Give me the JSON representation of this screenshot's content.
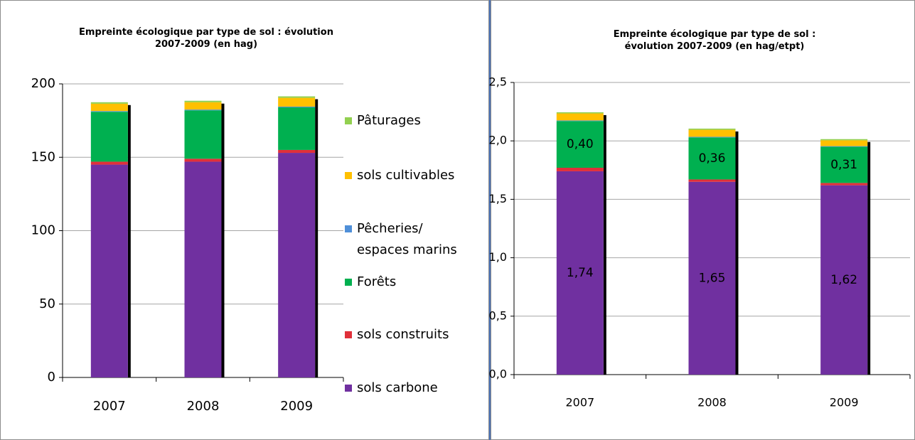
{
  "chart_data": [
    {
      "type": "bar",
      "stacked": true,
      "title": "Empreinte écologique par type de sol : évolution\n2007-2009  (en hag)",
      "categories": [
        "2007",
        "2008",
        "2009"
      ],
      "ylim": [
        0,
        200
      ],
      "yticks": [
        0,
        50,
        100,
        150,
        200
      ],
      "grid": true,
      "legend": "right",
      "series": [
        {
          "name": "sols carbone",
          "color": "#7030a0",
          "values": [
            145,
            147,
            153
          ]
        },
        {
          "name": "sols construits",
          "color": "#e0303a",
          "values": [
            2,
            2,
            2
          ]
        },
        {
          "name": "Forêts",
          "color": "#00b050",
          "values": [
            34,
            33,
            29
          ]
        },
        {
          "name": "Pêcheries/\nespaces marins",
          "color": "#4f8fd8",
          "values": [
            0.5,
            0.5,
            0.5
          ]
        },
        {
          "name": "sols cultivables",
          "color": "#ffc000",
          "values": [
            5,
            5,
            6
          ]
        },
        {
          "name": "Pâturages",
          "color": "#92d050",
          "values": [
            1,
            1,
            1
          ]
        }
      ]
    },
    {
      "type": "bar",
      "stacked": true,
      "title": "Empreinte écologique par type de sol :\névolution 2007-2009  (en hag/etpt)",
      "categories": [
        "2007",
        "2008",
        "2009"
      ],
      "ylim": [
        0,
        2.5
      ],
      "yticks": [
        {
          "value": 0,
          "label": "0,0"
        },
        {
          "value": 0.5,
          "label": "0,5"
        },
        {
          "value": 1,
          "label": "1,0"
        },
        {
          "value": 1.5,
          "label": "1,5"
        },
        {
          "value": 2,
          "label": "2,0"
        },
        {
          "value": 2.5,
          "label": "2,5"
        }
      ],
      "grid": true,
      "series": [
        {
          "color": "#7030a0",
          "values": [
            1.74,
            1.65,
            1.62
          ],
          "value_labels": [
            "1,74",
            "1,65",
            "1,62"
          ]
        },
        {
          "color": "#e0303a",
          "values": [
            0.03,
            0.02,
            0.02
          ]
        },
        {
          "color": "#00b050",
          "values": [
            0.4,
            0.36,
            0.31
          ],
          "value_labels": [
            "0,40",
            "0,36",
            "0,31"
          ]
        },
        {
          "color": "#4f8fd8",
          "values": [
            0.005,
            0.005,
            0.005
          ]
        },
        {
          "color": "#ffc000",
          "values": [
            0.06,
            0.06,
            0.05
          ]
        },
        {
          "color": "#92d050",
          "values": [
            0.01,
            0.01,
            0.01
          ]
        }
      ]
    }
  ]
}
